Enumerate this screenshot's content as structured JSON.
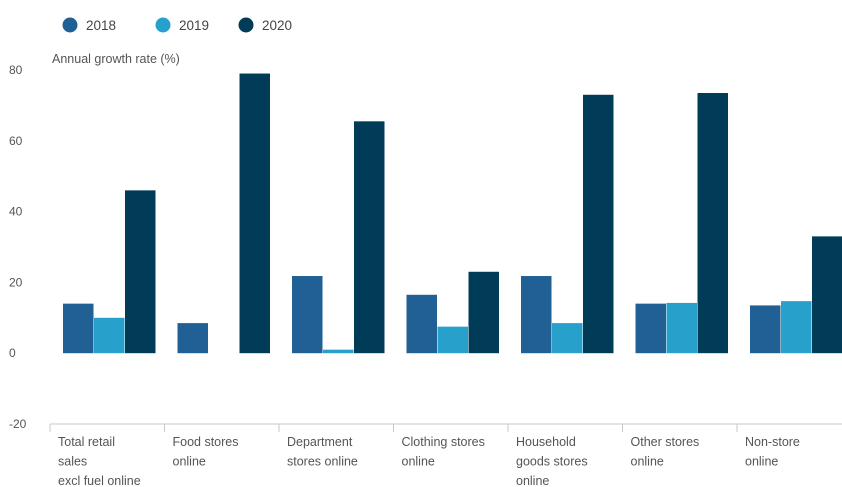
{
  "chart_data": {
    "type": "bar",
    "title": "",
    "ylabel": "Annual growth rate (%)",
    "xlabel": "",
    "ylim": [
      -20,
      80
    ],
    "yticks": [
      80,
      60,
      40,
      20,
      0,
      -20
    ],
    "legend_position": "top-left",
    "grid": false,
    "categories": [
      [
        "Total retail",
        "sales",
        "excl fuel online"
      ],
      [
        "Food stores",
        "online"
      ],
      [
        "Department",
        "stores online"
      ],
      [
        "Clothing stores",
        "online"
      ],
      [
        "Household",
        "goods stores",
        "online"
      ],
      [
        "Other stores",
        "online"
      ],
      [
        "Non-store",
        "online"
      ]
    ],
    "series": [
      {
        "name": "2018",
        "color": "#206095",
        "values": [
          14,
          8.5,
          21.8,
          16.5,
          21.8,
          14,
          13.5
        ]
      },
      {
        "name": "2019",
        "color": "#27a0cc",
        "values": [
          10,
          0,
          1,
          7.5,
          8.5,
          14.2,
          14.7
        ]
      },
      {
        "name": "2020",
        "color": "#003c57",
        "values": [
          46,
          79,
          65.5,
          23,
          73,
          73.5,
          33
        ]
      }
    ]
  }
}
